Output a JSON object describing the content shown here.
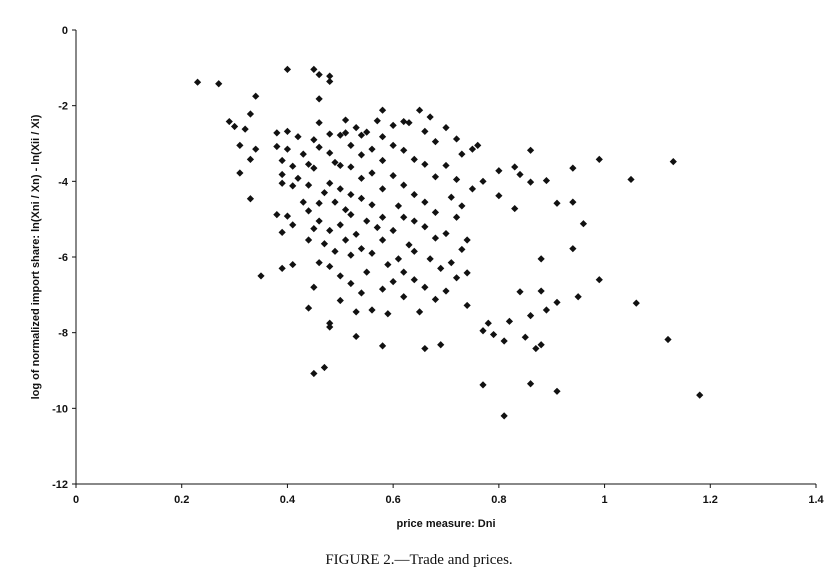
{
  "chart_data": {
    "type": "scatter",
    "title": "",
    "xlabel": "price measure: Dni",
    "ylabel": "log of normalized import share: ln(Xni / Xn) - ln(Xii / Xi)",
    "xlim": [
      0,
      1.4
    ],
    "ylim": [
      -12,
      0
    ],
    "x_ticks": [
      "0",
      "0.2",
      "0.4",
      "0.6",
      "0.8",
      "1",
      "1.2",
      "1.4"
    ],
    "y_ticks": [
      "0",
      "-2",
      "-4",
      "-6",
      "-8",
      "-10",
      "-12"
    ],
    "grid": false,
    "legend": "none",
    "marker": "diamond",
    "marker_color": "#111111",
    "points": [
      [
        0.23,
        -1.38
      ],
      [
        0.27,
        -1.42
      ],
      [
        0.4,
        -1.04
      ],
      [
        0.45,
        -1.04
      ],
      [
        0.46,
        -1.18
      ],
      [
        0.48,
        -1.22
      ],
      [
        0.48,
        -1.36
      ],
      [
        0.46,
        -1.82
      ],
      [
        0.29,
        -2.42
      ],
      [
        0.3,
        -2.55
      ],
      [
        0.32,
        -2.62
      ],
      [
        0.33,
        -2.22
      ],
      [
        0.34,
        -1.75
      ],
      [
        0.31,
        -3.05
      ],
      [
        0.33,
        -3.42
      ],
      [
        0.34,
        -3.15
      ],
      [
        0.31,
        -3.78
      ],
      [
        0.33,
        -4.46
      ],
      [
        0.35,
        -6.5
      ],
      [
        0.38,
        -2.72
      ],
      [
        0.38,
        -3.08
      ],
      [
        0.39,
        -3.45
      ],
      [
        0.39,
        -3.82
      ],
      [
        0.4,
        -2.68
      ],
      [
        0.4,
        -3.15
      ],
      [
        0.38,
        -4.88
      ],
      [
        0.39,
        -4.05
      ],
      [
        0.41,
        -3.6
      ],
      [
        0.42,
        -2.82
      ],
      [
        0.41,
        -4.12
      ],
      [
        0.4,
        -4.92
      ],
      [
        0.39,
        -5.35
      ],
      [
        0.41,
        -5.15
      ],
      [
        0.43,
        -3.28
      ],
      [
        0.42,
        -3.92
      ],
      [
        0.43,
        -4.55
      ],
      [
        0.41,
        -6.2
      ],
      [
        0.39,
        -6.3
      ],
      [
        0.44,
        -3.55
      ],
      [
        0.44,
        -4.1
      ],
      [
        0.44,
        -4.78
      ],
      [
        0.45,
        -5.25
      ],
      [
        0.44,
        -5.55
      ],
      [
        0.45,
        -2.9
      ],
      [
        0.46,
        -2.45
      ],
      [
        0.46,
        -3.1
      ],
      [
        0.45,
        -3.65
      ],
      [
        0.47,
        -4.3
      ],
      [
        0.46,
        -4.58
      ],
      [
        0.46,
        -5.05
      ],
      [
        0.47,
        -5.65
      ],
      [
        0.46,
        -6.15
      ],
      [
        0.45,
        -6.8
      ],
      [
        0.44,
        -7.35
      ],
      [
        0.45,
        -9.08
      ],
      [
        0.47,
        -8.92
      ],
      [
        0.48,
        -2.75
      ],
      [
        0.48,
        -3.25
      ],
      [
        0.49,
        -3.5
      ],
      [
        0.48,
        -4.05
      ],
      [
        0.49,
        -4.55
      ],
      [
        0.48,
        -5.3
      ],
      [
        0.49,
        -5.85
      ],
      [
        0.48,
        -6.25
      ],
      [
        0.48,
        -7.75
      ],
      [
        0.48,
        -7.85
      ],
      [
        0.5,
        -2.78
      ],
      [
        0.5,
        -3.58
      ],
      [
        0.5,
        -4.2
      ],
      [
        0.51,
        -4.75
      ],
      [
        0.5,
        -5.15
      ],
      [
        0.51,
        -5.55
      ],
      [
        0.5,
        -6.5
      ],
      [
        0.5,
        -7.15
      ],
      [
        0.51,
        -2.38
      ],
      [
        0.51,
        -2.72
      ],
      [
        0.52,
        -3.05
      ],
      [
        0.52,
        -3.62
      ],
      [
        0.52,
        -4.35
      ],
      [
        0.52,
        -4.88
      ],
      [
        0.53,
        -5.4
      ],
      [
        0.52,
        -5.95
      ],
      [
        0.52,
        -6.7
      ],
      [
        0.53,
        -7.45
      ],
      [
        0.53,
        -8.1
      ],
      [
        0.53,
        -2.58
      ],
      [
        0.54,
        -2.78
      ],
      [
        0.54,
        -3.3
      ],
      [
        0.54,
        -3.92
      ],
      [
        0.54,
        -4.45
      ],
      [
        0.55,
        -5.05
      ],
      [
        0.54,
        -5.78
      ],
      [
        0.55,
        -6.4
      ],
      [
        0.54,
        -6.95
      ],
      [
        0.55,
        -2.7
      ],
      [
        0.56,
        -3.15
      ],
      [
        0.56,
        -3.78
      ],
      [
        0.56,
        -4.62
      ],
      [
        0.57,
        -5.22
      ],
      [
        0.56,
        -5.9
      ],
      [
        0.56,
        -7.4
      ],
      [
        0.57,
        -2.4
      ],
      [
        0.58,
        -2.12
      ],
      [
        0.58,
        -2.82
      ],
      [
        0.58,
        -3.45
      ],
      [
        0.58,
        -4.2
      ],
      [
        0.58,
        -4.95
      ],
      [
        0.58,
        -5.55
      ],
      [
        0.59,
        -6.2
      ],
      [
        0.58,
        -6.85
      ],
      [
        0.59,
        -7.5
      ],
      [
        0.58,
        -8.35
      ],
      [
        0.6,
        -2.52
      ],
      [
        0.6,
        -3.05
      ],
      [
        0.6,
        -3.85
      ],
      [
        0.61,
        -4.65
      ],
      [
        0.6,
        -5.3
      ],
      [
        0.61,
        -6.05
      ],
      [
        0.6,
        -6.65
      ],
      [
        0.62,
        -2.42
      ],
      [
        0.62,
        -3.18
      ],
      [
        0.62,
        -4.1
      ],
      [
        0.62,
        -4.95
      ],
      [
        0.63,
        -5.68
      ],
      [
        0.62,
        -6.4
      ],
      [
        0.62,
        -7.05
      ],
      [
        0.63,
        -2.45
      ],
      [
        0.64,
        -3.42
      ],
      [
        0.64,
        -4.35
      ],
      [
        0.64,
        -5.05
      ],
      [
        0.64,
        -5.85
      ],
      [
        0.64,
        -6.6
      ],
      [
        0.65,
        -7.45
      ],
      [
        0.65,
        -2.12
      ],
      [
        0.66,
        -2.68
      ],
      [
        0.66,
        -3.55
      ],
      [
        0.66,
        -4.55
      ],
      [
        0.66,
        -5.2
      ],
      [
        0.67,
        -6.05
      ],
      [
        0.66,
        -6.8
      ],
      [
        0.66,
        -8.42
      ],
      [
        0.67,
        -2.3
      ],
      [
        0.68,
        -2.95
      ],
      [
        0.68,
        -3.88
      ],
      [
        0.68,
        -4.82
      ],
      [
        0.68,
        -5.5
      ],
      [
        0.69,
        -6.3
      ],
      [
        0.68,
        -7.12
      ],
      [
        0.69,
        -8.32
      ],
      [
        0.7,
        -2.58
      ],
      [
        0.7,
        -3.58
      ],
      [
        0.71,
        -4.42
      ],
      [
        0.7,
        -5.38
      ],
      [
        0.71,
        -6.15
      ],
      [
        0.7,
        -6.9
      ],
      [
        0.72,
        -2.88
      ],
      [
        0.72,
        -3.95
      ],
      [
        0.72,
        -4.95
      ],
      [
        0.73,
        -5.8
      ],
      [
        0.72,
        -6.55
      ],
      [
        0.73,
        -3.28
      ],
      [
        0.73,
        -4.65
      ],
      [
        0.74,
        -5.55
      ],
      [
        0.74,
        -6.42
      ],
      [
        0.75,
        -3.15
      ],
      [
        0.75,
        -4.2
      ],
      [
        0.74,
        -7.28
      ],
      [
        0.76,
        -3.05
      ],
      [
        0.77,
        -4.0
      ],
      [
        0.77,
        -7.95
      ],
      [
        0.77,
        -9.38
      ],
      [
        0.78,
        -7.75
      ],
      [
        0.79,
        -8.05
      ],
      [
        0.8,
        -4.38
      ],
      [
        0.8,
        -3.72
      ],
      [
        0.81,
        -8.22
      ],
      [
        0.81,
        -10.2
      ],
      [
        0.82,
        -7.7
      ],
      [
        0.83,
        -3.62
      ],
      [
        0.83,
        -4.72
      ],
      [
        0.84,
        -3.82
      ],
      [
        0.84,
        -6.92
      ],
      [
        0.85,
        -8.12
      ],
      [
        0.86,
        -3.18
      ],
      [
        0.86,
        -4.02
      ],
      [
        0.86,
        -7.55
      ],
      [
        0.86,
        -9.35
      ],
      [
        0.87,
        -8.42
      ],
      [
        0.88,
        -6.05
      ],
      [
        0.88,
        -6.9
      ],
      [
        0.88,
        -8.32
      ],
      [
        0.89,
        -3.98
      ],
      [
        0.89,
        -7.4
      ],
      [
        0.91,
        -4.58
      ],
      [
        0.91,
        -7.2
      ],
      [
        0.91,
        -9.55
      ],
      [
        0.94,
        -3.65
      ],
      [
        0.94,
        -4.55
      ],
      [
        0.94,
        -5.78
      ],
      [
        0.95,
        -7.05
      ],
      [
        0.96,
        -5.12
      ],
      [
        0.99,
        -3.42
      ],
      [
        0.99,
        -6.6
      ],
      [
        1.05,
        -3.95
      ],
      [
        1.06,
        -7.22
      ],
      [
        1.12,
        -8.18
      ],
      [
        1.13,
        -3.48
      ],
      [
        1.18,
        -9.65
      ]
    ]
  },
  "caption": "FIGURE 2.—Trade and prices."
}
